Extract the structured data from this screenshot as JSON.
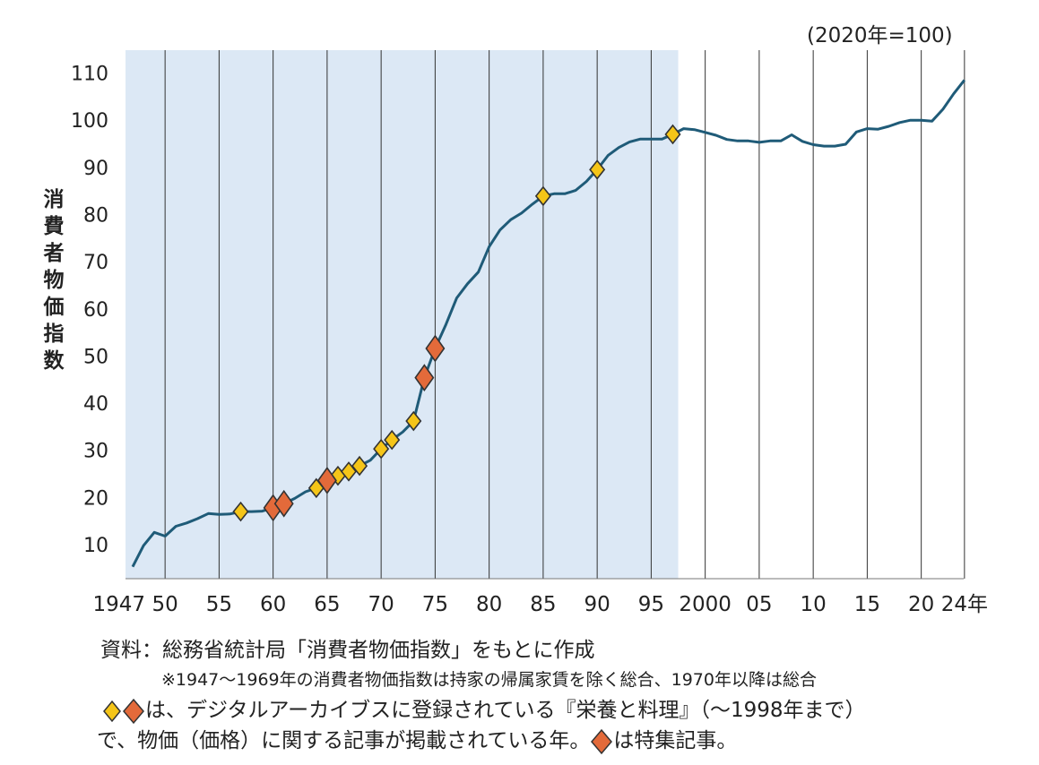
{
  "chart_data": {
    "type": "line",
    "unit_label": "(2020年=100)",
    "ylabel": "消費者物価指数",
    "y_ticks": [
      10,
      20,
      30,
      40,
      50,
      60,
      70,
      80,
      90,
      100,
      110
    ],
    "x_ticks": [
      {
        "year": 1947,
        "label": "1947"
      },
      {
        "year": 1950,
        "label": "50"
      },
      {
        "year": 1955,
        "label": "55"
      },
      {
        "year": 1960,
        "label": "60"
      },
      {
        "year": 1965,
        "label": "65"
      },
      {
        "year": 1970,
        "label": "70"
      },
      {
        "year": 1975,
        "label": "75"
      },
      {
        "year": 1980,
        "label": "80"
      },
      {
        "year": 1985,
        "label": "85"
      },
      {
        "year": 1990,
        "label": "90"
      },
      {
        "year": 1995,
        "label": "95"
      },
      {
        "year": 2000,
        "label": "2000"
      },
      {
        "year": 2005,
        "label": "05"
      },
      {
        "year": 2010,
        "label": "10"
      },
      {
        "year": 2015,
        "label": "15"
      },
      {
        "year": 2020,
        "label": "20"
      },
      {
        "year": 2024,
        "label": "24年"
      }
    ],
    "shaded_range": [
      1947,
      1998
    ],
    "grid": "vertical",
    "series": [
      {
        "color": "#1f5b78",
        "points": [
          [
            1947,
            5.3
          ],
          [
            1948,
            9.8
          ],
          [
            1949,
            12.6
          ],
          [
            1950,
            11.8
          ],
          [
            1951,
            13.9
          ],
          [
            1952,
            14.6
          ],
          [
            1953,
            15.5
          ],
          [
            1954,
            16.6
          ],
          [
            1955,
            16.4
          ],
          [
            1956,
            16.5
          ],
          [
            1957,
            17.0
          ],
          [
            1958,
            17.0
          ],
          [
            1959,
            17.1
          ],
          [
            1960,
            17.8
          ],
          [
            1961,
            18.7
          ],
          [
            1962,
            19.8
          ],
          [
            1963,
            21.2
          ],
          [
            1964,
            22.0
          ],
          [
            1965,
            23.6
          ],
          [
            1966,
            24.6
          ],
          [
            1967,
            25.5
          ],
          [
            1968,
            26.7
          ],
          [
            1969,
            27.9
          ],
          [
            1970,
            30.3
          ],
          [
            1971,
            32.2
          ],
          [
            1972,
            33.9
          ],
          [
            1973,
            36.2
          ],
          [
            1974,
            45.4
          ],
          [
            1975,
            51.6
          ],
          [
            1976,
            56.7
          ],
          [
            1977,
            62.3
          ],
          [
            1978,
            65.3
          ],
          [
            1979,
            67.8
          ],
          [
            1980,
            73.2
          ],
          [
            1981,
            76.7
          ],
          [
            1982,
            78.9
          ],
          [
            1983,
            80.3
          ],
          [
            1984,
            82.2
          ],
          [
            1985,
            83.9
          ],
          [
            1986,
            84.4
          ],
          [
            1987,
            84.4
          ],
          [
            1988,
            85.1
          ],
          [
            1989,
            87.0
          ],
          [
            1990,
            89.5
          ],
          [
            1991,
            92.5
          ],
          [
            1992,
            94.2
          ],
          [
            1993,
            95.4
          ],
          [
            1994,
            96.0
          ],
          [
            1995,
            96.0
          ],
          [
            1996,
            96.0
          ],
          [
            1997,
            97.0
          ],
          [
            1998,
            98.2
          ],
          [
            1999,
            98.0
          ],
          [
            2000,
            97.4
          ],
          [
            2001,
            96.8
          ],
          [
            2002,
            95.9
          ],
          [
            2003,
            95.6
          ],
          [
            2004,
            95.6
          ],
          [
            2005,
            95.3
          ],
          [
            2006,
            95.6
          ],
          [
            2007,
            95.6
          ],
          [
            2008,
            96.9
          ],
          [
            2009,
            95.5
          ],
          [
            2010,
            94.8
          ],
          [
            2011,
            94.5
          ],
          [
            2012,
            94.5
          ],
          [
            2013,
            94.9
          ],
          [
            2014,
            97.5
          ],
          [
            2015,
            98.2
          ],
          [
            2016,
            98.1
          ],
          [
            2017,
            98.7
          ],
          [
            2018,
            99.5
          ],
          [
            2019,
            100.0
          ],
          [
            2020,
            100.0
          ],
          [
            2021,
            99.8
          ],
          [
            2022,
            102.3
          ],
          [
            2023,
            105.6
          ],
          [
            2024,
            108.5
          ]
        ]
      }
    ],
    "markers": {
      "regular": [
        1957,
        1964,
        1966,
        1967,
        1968,
        1970,
        1971,
        1973,
        1985,
        1990,
        1997
      ],
      "special": [
        1960,
        1961,
        1965,
        1974,
        1975
      ],
      "regular_color": "#f5c518",
      "special_color": "#e36a3a"
    }
  },
  "notes": {
    "source": "資料：総務省統計局「消費者物価指数」をもとに作成",
    "footnote": "※1947～1969年の消費者物価指数は持家の帰属家賃を除く総合、1970年以降は総合",
    "legend_line1": "は、デジタルアーカイブスに登録されている『栄養と料理』（～1998年まで）",
    "legend_line2": "で、物価（価格）に関する記事が掲載されている年。",
    "legend_line2b": "は特集記事。"
  }
}
